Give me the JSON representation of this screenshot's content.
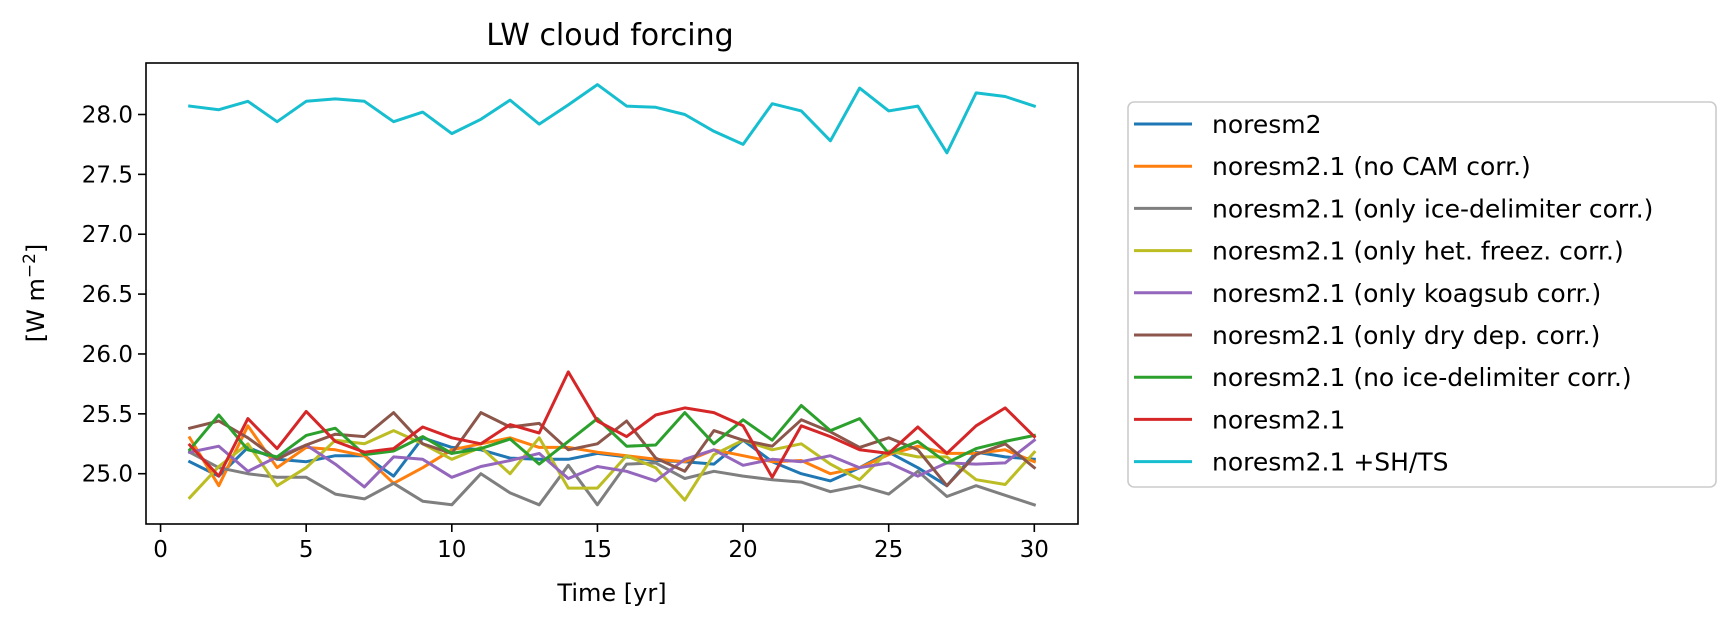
{
  "chart_data": {
    "type": "line",
    "title": "LW cloud forcing",
    "xlabel": "Time [yr]",
    "ylabel_base": "[W m",
    "ylabel_sup": "−2",
    "ylabel_end": "]",
    "xlim": [
      -0.5,
      31.5
    ],
    "ylim": [
      24.58,
      28.43
    ],
    "xticks": [
      0,
      5,
      10,
      15,
      20,
      25,
      30
    ],
    "yticks": [
      25.0,
      25.5,
      26.0,
      26.5,
      27.0,
      27.5,
      28.0
    ],
    "ytick_labels": [
      "25.0",
      "25.5",
      "26.0",
      "26.5",
      "27.0",
      "27.5",
      "28.0"
    ],
    "x": [
      1,
      2,
      3,
      4,
      5,
      6,
      7,
      8,
      9,
      10,
      11,
      12,
      13,
      14,
      15,
      16,
      17,
      18,
      19,
      20,
      21,
      22,
      23,
      24,
      25,
      26,
      27,
      28,
      29,
      30
    ],
    "legend_position": "outside-right",
    "series": [
      {
        "name": "noresm2",
        "color": "#1f77b4",
        "values": [
          25.1,
          24.98,
          25.22,
          25.12,
          25.1,
          25.15,
          25.15,
          24.98,
          25.3,
          25.22,
          25.2,
          25.13,
          25.12,
          25.12,
          25.17,
          25.14,
          25.11,
          25.1,
          25.08,
          25.28,
          25.1,
          25.0,
          24.94,
          25.05,
          25.18,
          25.05,
          24.9,
          25.18,
          25.14,
          25.12
        ]
      },
      {
        "name": "noresm2.1 (no CAM corr.)",
        "color": "#ff7f0e",
        "values": [
          25.3,
          24.9,
          25.4,
          25.05,
          25.22,
          25.2,
          25.15,
          24.92,
          25.05,
          25.2,
          25.25,
          25.3,
          25.22,
          25.22,
          25.18,
          25.15,
          25.12,
          25.1,
          25.2,
          25.15,
          25.1,
          25.11,
          25.0,
          25.05,
          25.16,
          25.23,
          25.17,
          25.17,
          25.2,
          25.1
        ]
      },
      {
        "name": "noresm2.1 (only ice-delimiter corr.)",
        "color": "#7f7f7f",
        "values": [
          25.18,
          25.05,
          25.0,
          24.97,
          24.97,
          24.83,
          24.79,
          24.92,
          24.77,
          24.74,
          25.0,
          24.84,
          24.74,
          25.07,
          24.74,
          25.08,
          25.09,
          24.96,
          25.02,
          24.98,
          24.95,
          24.93,
          24.85,
          24.9,
          24.83,
          25.02,
          24.81,
          24.9,
          24.82,
          24.74
        ]
      },
      {
        "name": "noresm2.1 (only het. freez. corr.)",
        "color": "#bcbd22",
        "values": [
          24.8,
          25.06,
          25.25,
          24.9,
          25.05,
          25.28,
          25.25,
          25.36,
          25.25,
          25.12,
          25.22,
          25.0,
          25.3,
          24.88,
          24.88,
          25.15,
          25.05,
          24.78,
          25.16,
          25.28,
          25.2,
          25.25,
          25.08,
          24.95,
          25.19,
          25.14,
          25.14,
          24.95,
          24.91,
          25.18
        ]
      },
      {
        "name": "noresm2.1 (only koagsub corr.)",
        "color": "#9467bd",
        "values": [
          25.18,
          25.23,
          25.02,
          25.14,
          25.24,
          25.08,
          24.89,
          25.14,
          25.12,
          24.97,
          25.06,
          25.11,
          25.17,
          24.96,
          25.06,
          25.02,
          24.94,
          25.12,
          25.2,
          25.07,
          25.12,
          25.1,
          25.15,
          25.05,
          25.09,
          24.98,
          25.09,
          25.08,
          25.09,
          25.28
        ]
      },
      {
        "name": "noresm2.1 (only dry dep. corr.)",
        "color": "#8c564b",
        "values": [
          25.38,
          25.44,
          25.3,
          25.12,
          25.24,
          25.33,
          25.31,
          25.51,
          25.25,
          25.17,
          25.51,
          25.39,
          25.42,
          25.2,
          25.25,
          25.44,
          25.13,
          25.02,
          25.36,
          25.28,
          25.23,
          25.45,
          25.35,
          25.22,
          25.3,
          25.2,
          24.9,
          25.16,
          25.25,
          25.05
        ]
      },
      {
        "name": "noresm2.1 (no ice-delimiter corr.)",
        "color": "#2ca02c",
        "values": [
          25.2,
          25.49,
          25.2,
          25.14,
          25.32,
          25.38,
          25.16,
          25.19,
          25.31,
          25.17,
          25.21,
          25.29,
          25.08,
          25.27,
          25.46,
          25.23,
          25.24,
          25.51,
          25.25,
          25.45,
          25.28,
          25.57,
          25.36,
          25.46,
          25.17,
          25.27,
          25.09,
          25.21,
          25.27,
          25.32
        ]
      },
      {
        "name": "noresm2.1",
        "color": "#d62728",
        "values": [
          25.24,
          24.98,
          25.46,
          25.21,
          25.52,
          25.27,
          25.18,
          25.21,
          25.39,
          25.3,
          25.25,
          25.41,
          25.34,
          25.85,
          25.44,
          25.31,
          25.49,
          25.55,
          25.51,
          25.4,
          24.97,
          25.4,
          25.31,
          25.2,
          25.17,
          25.39,
          25.17,
          25.4,
          25.55,
          25.31
        ]
      },
      {
        "name": "noresm2.1 +SH/TS",
        "color": "#17becf",
        "values": [
          28.07,
          28.04,
          28.11,
          27.94,
          28.11,
          28.13,
          28.11,
          27.94,
          28.02,
          27.84,
          27.96,
          28.12,
          27.92,
          28.08,
          28.25,
          28.07,
          28.06,
          28.0,
          27.86,
          27.75,
          28.09,
          28.03,
          27.78,
          28.22,
          28.03,
          28.07,
          27.68,
          28.18,
          28.15,
          28.07
        ]
      }
    ]
  }
}
